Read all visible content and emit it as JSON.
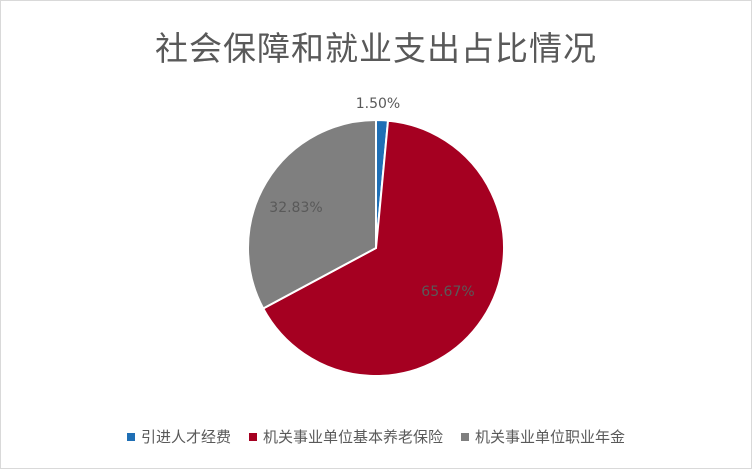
{
  "chart_data": {
    "type": "pie",
    "title": "社会保障和就业支出占比情况",
    "categories": [
      "引进人才经费",
      "机关事业单位基本养老保险",
      "机关事业单位职业年金"
    ],
    "values": [
      1.5,
      65.67,
      32.83
    ],
    "labels": [
      "1.50%",
      "65.67%",
      "32.83%"
    ],
    "colors": [
      "#1f6fb5",
      "#a50021",
      "#7f7f7f"
    ],
    "legend": "bottom"
  }
}
